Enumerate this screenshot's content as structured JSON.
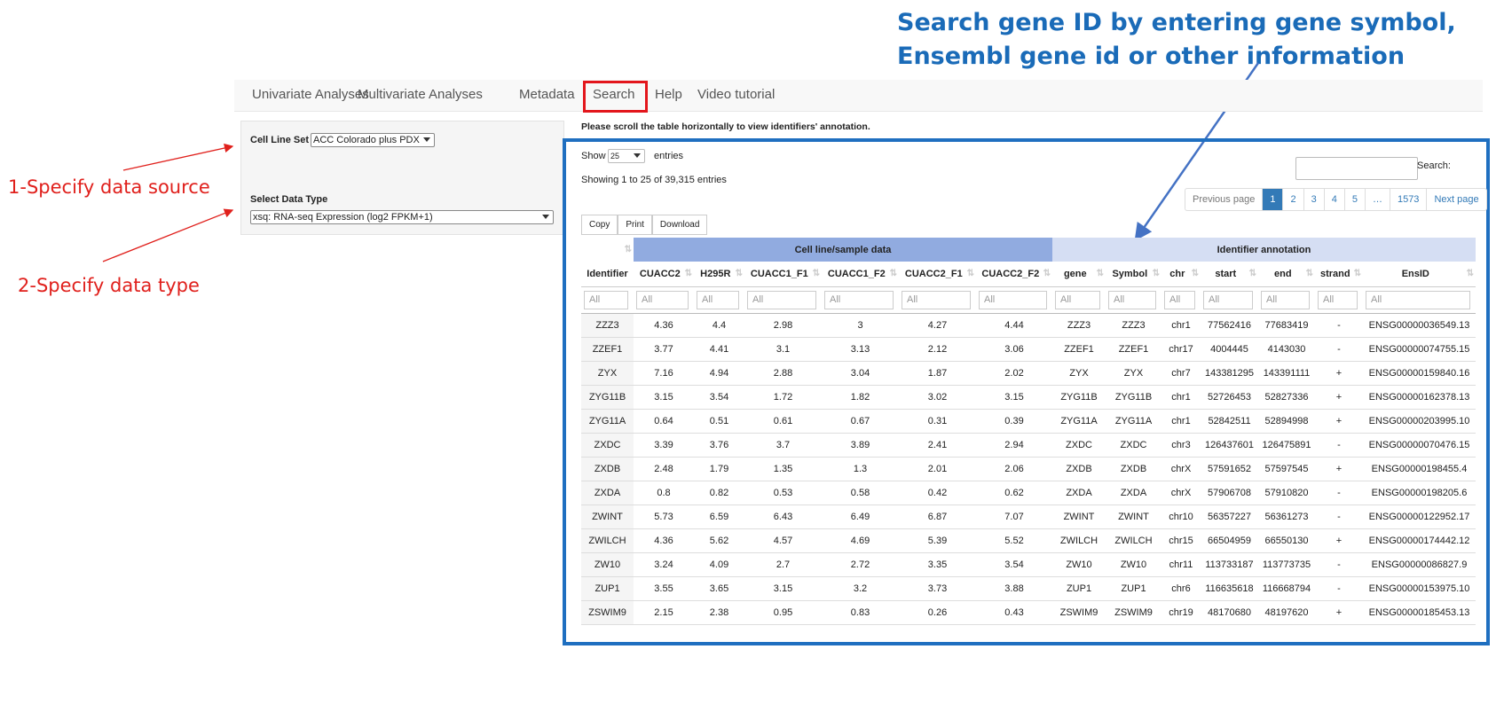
{
  "annotations": {
    "callout": [
      "Search gene ID by entering gene symbol,",
      "Ensembl gene id or other information"
    ],
    "step1": "1-Specify data source",
    "step2": "2-Specify data type"
  },
  "nav": [
    "Univariate Analyses",
    "Multivariate Analyses",
    "Metadata",
    "Search",
    "Help",
    "Video tutorial"
  ],
  "sidebar": {
    "cell_line_label": "Cell Line Set",
    "cell_line_value": "ACC Colorado plus PDX",
    "data_type_label": "Select Data Type",
    "data_type_value": "xsq: RNA-seq Expression (log2 FPKM+1)"
  },
  "notice": "Please scroll the table horizontally to view identifiers' annotation.",
  "controls": {
    "show": "Show",
    "length": "25",
    "entries": "entries",
    "info": "Showing 1 to 25 of 39,315 entries",
    "search": "Search:",
    "buttons": [
      "Copy",
      "Print",
      "Download"
    ],
    "pagination": [
      "Previous page",
      "1",
      "2",
      "3",
      "4",
      "5",
      "…",
      "1573",
      "Next page"
    ]
  },
  "table": {
    "groups": [
      "Cell line/sample data",
      "Identifier annotation"
    ],
    "columns": [
      "Identifier",
      "CUACC2",
      "H295R",
      "CUACC1_F1",
      "CUACC1_F2",
      "CUACC2_F1",
      "CUACC2_F2",
      "gene",
      "Symbol",
      "chr",
      "start",
      "end",
      "strand",
      "EnsID"
    ],
    "filter_placeholder": "All",
    "rows": [
      [
        "ZZZ3",
        "4.36",
        "4.4",
        "2.98",
        "3",
        "4.27",
        "4.44",
        "ZZZ3",
        "ZZZ3",
        "chr1",
        "77562416",
        "77683419",
        "-",
        "ENSG00000036549.13"
      ],
      [
        "ZZEF1",
        "3.77",
        "4.41",
        "3.1",
        "3.13",
        "2.12",
        "3.06",
        "ZZEF1",
        "ZZEF1",
        "chr17",
        "4004445",
        "4143030",
        "-",
        "ENSG00000074755.15"
      ],
      [
        "ZYX",
        "7.16",
        "4.94",
        "2.88",
        "3.04",
        "1.87",
        "2.02",
        "ZYX",
        "ZYX",
        "chr7",
        "143381295",
        "143391111",
        "+",
        "ENSG00000159840.16"
      ],
      [
        "ZYG11B",
        "3.15",
        "3.54",
        "1.72",
        "1.82",
        "3.02",
        "3.15",
        "ZYG11B",
        "ZYG11B",
        "chr1",
        "52726453",
        "52827336",
        "+",
        "ENSG00000162378.13"
      ],
      [
        "ZYG11A",
        "0.64",
        "0.51",
        "0.61",
        "0.67",
        "0.31",
        "0.39",
        "ZYG11A",
        "ZYG11A",
        "chr1",
        "52842511",
        "52894998",
        "+",
        "ENSG00000203995.10"
      ],
      [
        "ZXDC",
        "3.39",
        "3.76",
        "3.7",
        "3.89",
        "2.41",
        "2.94",
        "ZXDC",
        "ZXDC",
        "chr3",
        "126437601",
        "126475891",
        "-",
        "ENSG00000070476.15"
      ],
      [
        "ZXDB",
        "2.48",
        "1.79",
        "1.35",
        "1.3",
        "2.01",
        "2.06",
        "ZXDB",
        "ZXDB",
        "chrX",
        "57591652",
        "57597545",
        "+",
        "ENSG00000198455.4"
      ],
      [
        "ZXDA",
        "0.8",
        "0.82",
        "0.53",
        "0.58",
        "0.42",
        "0.62",
        "ZXDA",
        "ZXDA",
        "chrX",
        "57906708",
        "57910820",
        "-",
        "ENSG00000198205.6"
      ],
      [
        "ZWINT",
        "5.73",
        "6.59",
        "6.43",
        "6.49",
        "6.87",
        "7.07",
        "ZWINT",
        "ZWINT",
        "chr10",
        "56357227",
        "56361273",
        "-",
        "ENSG00000122952.17"
      ],
      [
        "ZWILCH",
        "4.36",
        "5.62",
        "4.57",
        "4.69",
        "5.39",
        "5.52",
        "ZWILCH",
        "ZWILCH",
        "chr15",
        "66504959",
        "66550130",
        "+",
        "ENSG00000174442.12"
      ],
      [
        "ZW10",
        "3.24",
        "4.09",
        "2.7",
        "2.72",
        "3.35",
        "3.54",
        "ZW10",
        "ZW10",
        "chr11",
        "113733187",
        "113773735",
        "-",
        "ENSG00000086827.9"
      ],
      [
        "ZUP1",
        "3.55",
        "3.65",
        "3.15",
        "3.2",
        "3.73",
        "3.88",
        "ZUP1",
        "ZUP1",
        "chr6",
        "116635618",
        "116668794",
        "-",
        "ENSG00000153975.10"
      ],
      [
        "ZSWIM9",
        "2.15",
        "2.38",
        "0.95",
        "0.83",
        "0.26",
        "0.43",
        "ZSWIM9",
        "ZSWIM9",
        "chr19",
        "48170680",
        "48197620",
        "+",
        "ENSG00000185453.13"
      ]
    ]
  }
}
